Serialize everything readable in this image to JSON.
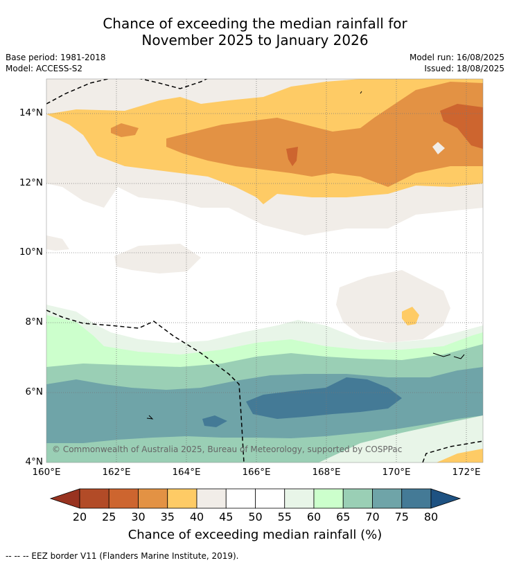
{
  "title": {
    "line1": "Chance of exceeding the median rainfall for",
    "line2": "November 2025 to January 2026"
  },
  "meta": {
    "base_period": "Base period: 1981-2018",
    "model": "Model: ACCESS-S2",
    "model_run": "Model run: 16/08/2025",
    "issued": "Issued: 18/08/2025"
  },
  "map": {
    "lat_ticks": [
      "14°N",
      "12°N",
      "10°N",
      "8°N",
      "6°N",
      "4°N"
    ],
    "lon_ticks": [
      "160°E",
      "162°E",
      "164°E",
      "166°E",
      "168°E",
      "170°E",
      "172°E"
    ],
    "copyright": "© Commonwealth of Australia 2025, Bureau of Meteorology, supported by COSPPac"
  },
  "colorbar": {
    "labels": [
      "20",
      "25",
      "30",
      "35",
      "40",
      "45",
      "50",
      "55",
      "60",
      "65",
      "70",
      "75",
      "80"
    ],
    "colors": [
      "#b24b27",
      "#cd652f",
      "#e39244",
      "#fecb65",
      "#f1ede8",
      "#ffffff",
      "#ffffff",
      "#e8f5e8",
      "#ccffcc",
      "#9acfb5",
      "#6fa4a8",
      "#447a96"
    ],
    "under_color": "#983320",
    "over_color": "#1e5282",
    "title": "Chance of exceeding median rainfall (%)"
  },
  "legend": {
    "footnote": "--  --  -- EEZ border V11 (Flanders Marine Institute, 2019)."
  }
}
